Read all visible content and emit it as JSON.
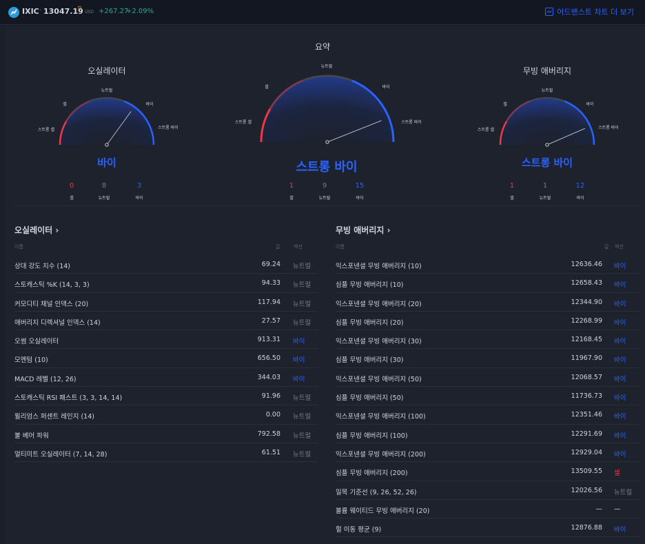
{
  "header": {
    "symbol": "IXIC",
    "dot": "·",
    "price": "13047.19",
    "price_sup": "D",
    "currency": "USD",
    "change": "+267.27",
    "change_pct": "+2.09%",
    "advanced_chart_link": "어드밴스트 차트 더 보기"
  },
  "summary_title": "요약",
  "gauges": {
    "oscillators": {
      "title": "오실레이터",
      "labels": {
        "strong_sell": "스트롱 셀",
        "sell": "셀",
        "neutral": "뉴트럴",
        "buy": "바이",
        "strong_buy": "스트롱 바이"
      },
      "rating": "바이",
      "needle": 0.7,
      "counts": [
        {
          "value": "0",
          "label": "셀"
        },
        {
          "value": "8",
          "label": "뉴트럴"
        },
        {
          "value": "3",
          "label": "바이"
        }
      ]
    },
    "summary": {
      "labels": {
        "strong_sell": "스트롱 셀",
        "sell": "셀",
        "neutral": "뉴트럴",
        "buy": "바이",
        "strong_buy": "스트롱 바이"
      },
      "rating": "스트롱 바이",
      "needle": 0.88,
      "counts": [
        {
          "value": "1",
          "label": "셀"
        },
        {
          "value": "9",
          "label": "뉴트럴"
        },
        {
          "value": "15",
          "label": "바이"
        }
      ]
    },
    "moving_averages": {
      "title": "무빙 애버리지",
      "labels": {
        "strong_sell": "스트롱 셀",
        "sell": "셀",
        "neutral": "뉴트럴",
        "buy": "바이",
        "strong_buy": "스트롱 바이"
      },
      "rating": "스트롱 바이",
      "needle": 0.87,
      "counts": [
        {
          "value": "1",
          "label": "셀"
        },
        {
          "value": "1",
          "label": "뉴트럴"
        },
        {
          "value": "12",
          "label": "바이"
        }
      ]
    }
  },
  "oscillators_table": {
    "title": "오실레이터",
    "chevron": "›",
    "columns": {
      "name": "이름",
      "value": "값",
      "action": "액션"
    },
    "rows": [
      {
        "name": "상대 강도 지수 (14)",
        "value": "69.24",
        "action": "뉴트럴"
      },
      {
        "name": "스토캐스틱 %K (14, 3, 3)",
        "value": "94.33",
        "action": "뉴트럴"
      },
      {
        "name": "커모디티 채널 인덱스 (20)",
        "value": "117.94",
        "action": "뉴트럴"
      },
      {
        "name": "애버리지 디렉셔널 인덱스 (14)",
        "value": "27.57",
        "action": "뉴트럴"
      },
      {
        "name": "오썸 오실레이터",
        "value": "913.31",
        "action": "바이"
      },
      {
        "name": "모멘텀 (10)",
        "value": "656.50",
        "action": "바이"
      },
      {
        "name": "MACD 레벨 (12, 26)",
        "value": "344.03",
        "action": "바이"
      },
      {
        "name": "스토캐스틱 RSI 패스트 (3, 3, 14, 14)",
        "value": "91.96",
        "action": "뉴트럴"
      },
      {
        "name": "윌리엄스 퍼센트 레인지 (14)",
        "value": "0.00",
        "action": "뉴트럴"
      },
      {
        "name": "불 베어 파워",
        "value": "792.58",
        "action": "뉴트럴"
      },
      {
        "name": "얼티미트 오실레이터 (7, 14, 28)",
        "value": "61.51",
        "action": "뉴트럴"
      }
    ]
  },
  "ma_table": {
    "title": "무빙 애버리지",
    "chevron": "›",
    "columns": {
      "name": "이름",
      "value": "값",
      "action": "액션"
    },
    "rows": [
      {
        "name": "익스포넨셜 무빙 애버리지 (10)",
        "value": "12636.46",
        "action": "바이"
      },
      {
        "name": "심플 무빙 애버리지 (10)",
        "value": "12658.43",
        "action": "바이"
      },
      {
        "name": "익스포넨셜 무빙 애버리지 (20)",
        "value": "12344.90",
        "action": "바이"
      },
      {
        "name": "심플 무빙 애버리지 (20)",
        "value": "12268.99",
        "action": "바이"
      },
      {
        "name": "익스포넨셜 무빙 애버리지 (30)",
        "value": "12168.45",
        "action": "바이"
      },
      {
        "name": "심플 무빙 애버리지 (30)",
        "value": "11967.90",
        "action": "바이"
      },
      {
        "name": "익스포넨셜 무빙 애버리지 (50)",
        "value": "12068.57",
        "action": "바이"
      },
      {
        "name": "심플 무빙 애버리지 (50)",
        "value": "11736.73",
        "action": "바이"
      },
      {
        "name": "익스포넨셜 무빙 애버리지 (100)",
        "value": "12351.46",
        "action": "바이"
      },
      {
        "name": "심플 무빙 애버리지 (100)",
        "value": "12291.69",
        "action": "바이"
      },
      {
        "name": "익스포넨셜 무빙 애버리지 (200)",
        "value": "12929.04",
        "action": "바이"
      },
      {
        "name": "심플 무빙 애버리지 (200)",
        "value": "13509.55",
        "action": "셀"
      },
      {
        "name": "일목 기준선 (9, 26, 52, 26)",
        "value": "12026.56",
        "action": "뉴트럴"
      },
      {
        "name": "볼륨 웨이티드 무빙 애버리지 (20)",
        "value": "—",
        "action": "—"
      },
      {
        "name": "헐 이동 평균 (9)",
        "value": "12876.88",
        "action": "바이"
      }
    ]
  },
  "colors": {
    "sell": "#f23645",
    "neutral": "#787b86",
    "buy": "#2962ff",
    "up": "#26a69a"
  }
}
